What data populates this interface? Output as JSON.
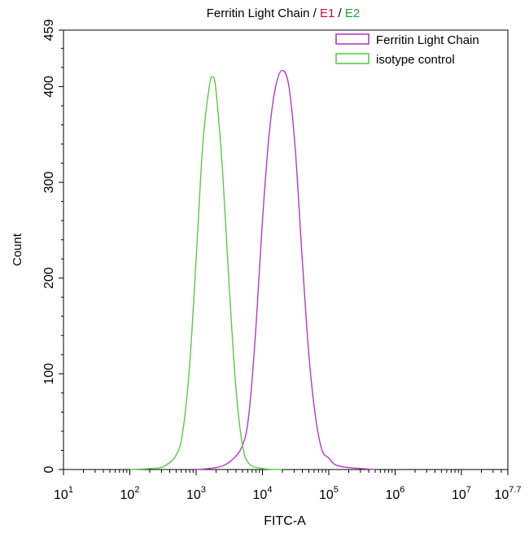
{
  "chart_data": {
    "type": "line",
    "title_parts": [
      {
        "text": "Ferritin Light Chain / ",
        "color": "#000000"
      },
      {
        "text": "E1",
        "color": "#c0152f"
      },
      {
        "text": " / ",
        "color": "#000000"
      },
      {
        "text": "E2",
        "color": "#1e9e3a"
      }
    ],
    "xlabel": "FITC-A",
    "ylabel": "Count",
    "x_scale": "log10",
    "xlim": [
      10,
      50118723
    ],
    "ylim": [
      0,
      459
    ],
    "x_ticks": [
      {
        "value": 10,
        "base": "10",
        "exp": "1"
      },
      {
        "value": 100,
        "base": "10",
        "exp": "2"
      },
      {
        "value": 1000,
        "base": "10",
        "exp": "3"
      },
      {
        "value": 10000,
        "base": "10",
        "exp": "4"
      },
      {
        "value": 100000,
        "base": "10",
        "exp": "5"
      },
      {
        "value": 1000000,
        "base": "10",
        "exp": "6"
      },
      {
        "value": 10000000,
        "base": "10",
        "exp": "7"
      },
      {
        "value": 50118723,
        "base": "10",
        "exp": "7.7"
      }
    ],
    "y_ticks": [
      0,
      100,
      200,
      300,
      400,
      459
    ],
    "legend_position": "top-right",
    "grid": false,
    "series": [
      {
        "name": "Ferritin Light Chain",
        "color": "#b03cc8",
        "points": [
          [
            1000,
            0
          ],
          [
            2000,
            2
          ],
          [
            3200,
            8
          ],
          [
            5000,
            25
          ],
          [
            6300,
            60
          ],
          [
            8000,
            150
          ],
          [
            10000,
            260
          ],
          [
            12600,
            350
          ],
          [
            15800,
            400
          ],
          [
            20000,
            417
          ],
          [
            25100,
            400
          ],
          [
            31600,
            330
          ],
          [
            39800,
            220
          ],
          [
            50100,
            120
          ],
          [
            63100,
            55
          ],
          [
            79400,
            20
          ],
          [
            100000,
            12
          ],
          [
            126000,
            5
          ],
          [
            200000,
            2
          ],
          [
            500000,
            0
          ]
        ]
      },
      {
        "name": "isotype control",
        "color": "#5cc84a",
        "points": [
          [
            100,
            0
          ],
          [
            200,
            1
          ],
          [
            320,
            3
          ],
          [
            500,
            15
          ],
          [
            630,
            40
          ],
          [
            800,
            110
          ],
          [
            1000,
            220
          ],
          [
            1260,
            340
          ],
          [
            1580,
            400
          ],
          [
            1780,
            410
          ],
          [
            2000,
            395
          ],
          [
            2510,
            310
          ],
          [
            3160,
            190
          ],
          [
            3980,
            85
          ],
          [
            5010,
            25
          ],
          [
            6310,
            6
          ],
          [
            10000,
            1
          ],
          [
            20000,
            0
          ]
        ]
      }
    ]
  }
}
